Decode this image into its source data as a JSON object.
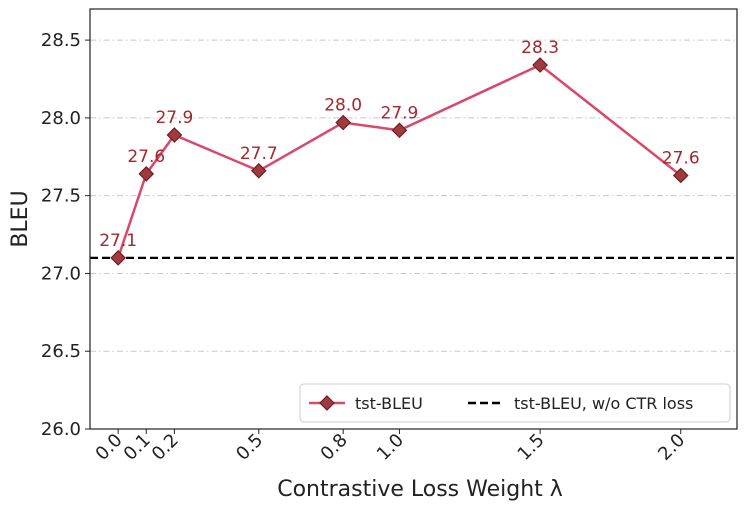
{
  "chart_data": {
    "type": "line",
    "xlabel": "Contrastive Loss Weight λ",
    "ylabel": "BLEU",
    "xlim": [
      -0.1,
      2.2
    ],
    "ylim": [
      26.0,
      28.7
    ],
    "x_ticks": [
      "0.0",
      "0.1",
      "0.2",
      "0.5",
      "0.8",
      "1.0",
      "1.5",
      "2.0"
    ],
    "x_tick_values": [
      0.0,
      0.1,
      0.2,
      0.5,
      0.8,
      1.0,
      1.5,
      2.0
    ],
    "y_ticks": [
      "26.0",
      "26.5",
      "27.0",
      "27.5",
      "28.0",
      "28.5"
    ],
    "y_tick_values": [
      26.0,
      26.5,
      27.0,
      27.5,
      28.0,
      28.5
    ],
    "grid": "horizontal dash-dot",
    "legend_position": "bottom-right",
    "series": [
      {
        "name": "tst-BLEU",
        "x": [
          0.0,
          0.1,
          0.2,
          0.5,
          0.8,
          1.0,
          1.5,
          2.0
        ],
        "values": [
          27.1,
          27.64,
          27.89,
          27.66,
          27.97,
          27.92,
          28.34,
          27.63
        ],
        "labels": [
          "27.1",
          "27.6",
          "27.9",
          "27.7",
          "28.0",
          "27.9",
          "28.3",
          "27.6"
        ],
        "color": "#d9486a",
        "marker_color": "#a03a3e",
        "label_color": "#a3282d",
        "marker": "diamond"
      }
    ],
    "reference_lines": [
      {
        "name": "tst-BLEU, w/o CTR loss",
        "y": 27.1,
        "color": "#000000",
        "style": "dashed"
      }
    ]
  }
}
